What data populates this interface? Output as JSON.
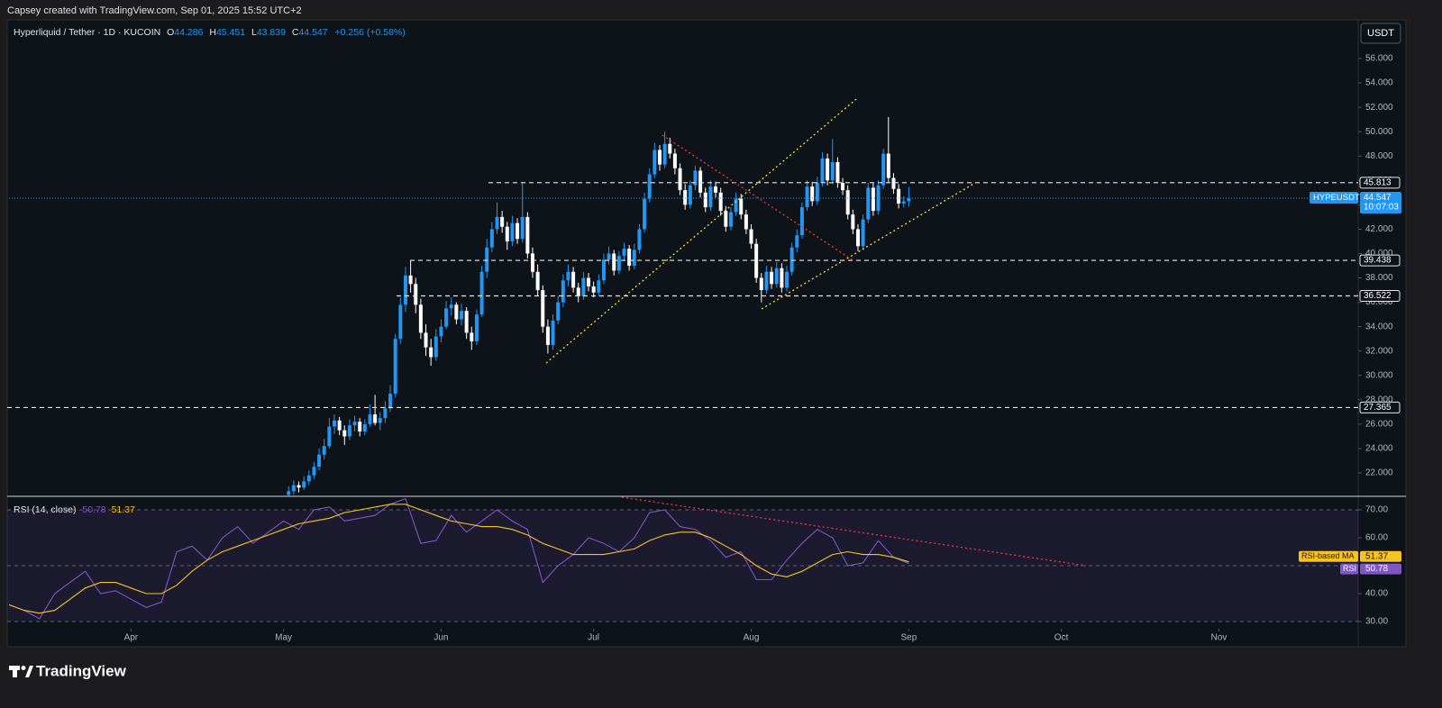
{
  "header": {
    "credit": "Capsey created with TradingView.com, Sep 01, 2025 15:52 UTC+2",
    "currency": "USDT"
  },
  "footer": {
    "logo": "TradingView"
  },
  "chart_data": [
    {
      "type": "candlestick",
      "title": "Hyperliquid / Tether · 1D · KUCOIN",
      "legend": [
        {
          "key": "O",
          "value": "44.286"
        },
        {
          "key": "H",
          "value": "45.451"
        },
        {
          "key": "L",
          "value": "43.839"
        },
        {
          "key": "C",
          "value": "44.547"
        }
      ],
      "change": "+0.256 (+0.58%)",
      "up_color": "#2196f3",
      "down_color": "#ffffff",
      "xlim": [
        0,
        265.4
      ],
      "ylim": [
        20.08,
        59.03
      ],
      "yticks": [
        {
          "value": 22,
          "label": "22.000"
        },
        {
          "value": 24,
          "label": "24.000"
        },
        {
          "value": 26,
          "label": "26.000"
        },
        {
          "value": 28,
          "label": "28.000"
        },
        {
          "value": 30,
          "label": "30.000"
        },
        {
          "value": 32,
          "label": "32.000"
        },
        {
          "value": 34,
          "label": "34.000"
        },
        {
          "value": 36,
          "label": "36.000"
        },
        {
          "value": 38,
          "label": "38.000"
        },
        {
          "value": 40,
          "label": "40.000"
        },
        {
          "value": 42,
          "label": "42.000"
        },
        {
          "value": 44,
          "label": "44.000"
        },
        {
          "value": 46,
          "label": "46.000"
        },
        {
          "value": 48,
          "label": "48.000"
        },
        {
          "value": 50,
          "label": "50.000"
        },
        {
          "value": 52,
          "label": "52.000"
        },
        {
          "value": 54,
          "label": "54.000"
        },
        {
          "value": 56,
          "label": "56.000"
        }
      ],
      "levels": [
        45.813,
        39.438,
        36.522,
        27.365
      ],
      "last_price": 44.547,
      "last_label": "HYPEUSDT",
      "countdown": "10:07:03",
      "x": [
        55,
        56,
        57,
        58,
        59,
        60,
        61,
        62,
        63,
        64,
        65,
        66,
        67,
        68,
        69,
        70,
        71,
        72,
        73,
        74,
        75,
        76,
        77,
        78,
        79,
        80,
        81,
        82,
        83,
        84,
        85,
        86,
        87,
        88,
        89,
        90,
        91,
        92,
        93,
        94,
        95,
        96,
        97,
        98,
        99,
        100,
        101,
        102,
        103,
        104,
        105,
        106,
        107,
        108,
        109,
        110,
        111,
        112,
        113,
        114,
        115,
        116,
        117,
        118,
        119,
        120,
        121,
        122,
        123,
        124,
        125,
        126,
        127,
        128,
        129,
        130,
        131,
        132,
        133,
        134,
        135,
        136,
        137,
        138,
        139,
        140,
        141,
        142,
        143,
        144,
        145,
        146,
        147,
        148,
        149,
        150,
        151,
        152,
        153,
        154,
        155,
        156,
        157,
        158,
        159,
        160,
        161,
        162,
        163,
        164,
        165,
        166,
        167,
        168,
        169,
        170,
        171,
        172,
        173,
        174,
        175,
        176,
        177
      ],
      "ohlc": [
        [
          20.2,
          20.9,
          19.8,
          20.5
        ],
        [
          20.5,
          21.4,
          20.2,
          21.0
        ],
        [
          21.0,
          21.3,
          20.4,
          20.8
        ],
        [
          20.8,
          21.7,
          20.6,
          21.3
        ],
        [
          21.3,
          22.2,
          21.0,
          21.8
        ],
        [
          21.8,
          22.9,
          21.5,
          22.5
        ],
        [
          22.5,
          24.0,
          22.2,
          23.5
        ],
        [
          23.5,
          24.8,
          23.1,
          24.2
        ],
        [
          24.2,
          26.5,
          24.0,
          25.8
        ],
        [
          25.8,
          26.8,
          25.2,
          26.3
        ],
        [
          26.3,
          26.6,
          25.1,
          25.5
        ],
        [
          25.5,
          25.9,
          24.3,
          25.0
        ],
        [
          25.0,
          26.4,
          24.7,
          25.9
        ],
        [
          25.9,
          26.7,
          25.4,
          26.2
        ],
        [
          26.2,
          26.5,
          25.0,
          25.4
        ],
        [
          25.4,
          26.4,
          25.1,
          26.0
        ],
        [
          26.0,
          27.6,
          25.8,
          26.8
        ],
        [
          26.8,
          28.4,
          25.9,
          26.1
        ],
        [
          26.1,
          27.0,
          25.5,
          26.5
        ],
        [
          26.5,
          27.9,
          26.1,
          27.3
        ],
        [
          27.3,
          29.2,
          27.0,
          28.5
        ],
        [
          28.5,
          33.4,
          28.2,
          33.0
        ],
        [
          33.0,
          36.4,
          32.6,
          35.8
        ],
        [
          35.8,
          38.9,
          35.2,
          38.2
        ],
        [
          38.2,
          39.4,
          36.8,
          37.5
        ],
        [
          37.5,
          38.0,
          35.1,
          35.8
        ],
        [
          35.8,
          36.3,
          33.0,
          33.5
        ],
        [
          33.5,
          34.2,
          31.6,
          32.3
        ],
        [
          32.3,
          33.0,
          30.8,
          31.5
        ],
        [
          31.5,
          33.8,
          31.2,
          33.2
        ],
        [
          33.2,
          34.6,
          32.7,
          34.0
        ],
        [
          34.0,
          36.1,
          33.8,
          35.5
        ],
        [
          35.5,
          36.4,
          34.9,
          35.8
        ],
        [
          35.8,
          36.0,
          34.2,
          34.6
        ],
        [
          34.6,
          35.9,
          34.1,
          35.3
        ],
        [
          35.3,
          35.6,
          33.0,
          33.5
        ],
        [
          33.5,
          34.0,
          32.1,
          32.8
        ],
        [
          32.8,
          35.4,
          32.5,
          35.0
        ],
        [
          35.0,
          39.0,
          34.8,
          38.5
        ],
        [
          38.5,
          41.2,
          38.0,
          40.5
        ],
        [
          40.5,
          42.6,
          40.1,
          42.0
        ],
        [
          42.0,
          44.2,
          41.6,
          43.0
        ],
        [
          43.0,
          43.5,
          41.7,
          42.2
        ],
        [
          42.2,
          42.6,
          40.3,
          41.0
        ],
        [
          41.0,
          43.1,
          40.6,
          42.5
        ],
        [
          42.5,
          42.9,
          40.8,
          41.2
        ],
        [
          41.2,
          45.8,
          40.9,
          43.0
        ],
        [
          43.0,
          43.4,
          39.6,
          40.0
        ],
        [
          40.0,
          40.5,
          38.0,
          38.5
        ],
        [
          38.5,
          39.1,
          36.5,
          37.0
        ],
        [
          37.0,
          37.4,
          33.5,
          34.0
        ],
        [
          34.0,
          34.6,
          31.8,
          32.5
        ],
        [
          32.5,
          35.0,
          32.1,
          34.5
        ],
        [
          34.5,
          36.5,
          34.2,
          36.0
        ],
        [
          36.0,
          38.3,
          35.6,
          37.8
        ],
        [
          37.8,
          39.1,
          37.3,
          38.5
        ],
        [
          38.5,
          38.9,
          36.8,
          37.2
        ],
        [
          37.2,
          37.6,
          36.0,
          36.5
        ],
        [
          36.5,
          38.5,
          36.2,
          38.0
        ],
        [
          38.0,
          38.4,
          36.9,
          37.3
        ],
        [
          37.3,
          37.7,
          36.4,
          36.8
        ],
        [
          36.8,
          38.3,
          36.5,
          37.8
        ],
        [
          37.8,
          40.0,
          37.5,
          39.5
        ],
        [
          39.5,
          40.6,
          39.1,
          40.0
        ],
        [
          40.0,
          40.3,
          38.2,
          38.6
        ],
        [
          38.6,
          40.2,
          38.3,
          39.8
        ],
        [
          39.8,
          40.9,
          39.4,
          40.4
        ],
        [
          40.4,
          40.7,
          38.6,
          39.0
        ],
        [
          39.0,
          40.8,
          38.7,
          40.3
        ],
        [
          40.3,
          42.4,
          40.0,
          42.0
        ],
        [
          42.0,
          45.0,
          41.7,
          44.5
        ],
        [
          44.5,
          47.0,
          44.2,
          46.5
        ],
        [
          46.5,
          49.1,
          46.2,
          48.5
        ],
        [
          48.5,
          48.9,
          46.8,
          47.3
        ],
        [
          47.3,
          50.0,
          47.0,
          49.0
        ],
        [
          49.0,
          49.5,
          47.8,
          48.2
        ],
        [
          48.2,
          48.6,
          46.5,
          47.0
        ],
        [
          47.0,
          47.4,
          44.8,
          45.2
        ],
        [
          45.2,
          45.7,
          43.6,
          44.0
        ],
        [
          44.0,
          46.0,
          43.7,
          45.6
        ],
        [
          45.6,
          47.2,
          45.2,
          46.8
        ],
        [
          46.8,
          47.1,
          44.6,
          45.0
        ],
        [
          45.0,
          45.4,
          43.4,
          43.8
        ],
        [
          43.8,
          46.0,
          43.5,
          45.5
        ],
        [
          45.5,
          45.9,
          44.6,
          45.0
        ],
        [
          45.0,
          45.4,
          43.1,
          43.5
        ],
        [
          43.5,
          43.9,
          41.8,
          42.2
        ],
        [
          42.2,
          43.8,
          41.9,
          43.4
        ],
        [
          43.4,
          45.0,
          43.1,
          44.5
        ],
        [
          44.5,
          44.9,
          42.8,
          43.2
        ],
        [
          43.2,
          43.6,
          41.6,
          42.0
        ],
        [
          42.0,
          42.4,
          40.4,
          40.8
        ],
        [
          40.8,
          41.2,
          37.6,
          38.0
        ],
        [
          38.0,
          38.4,
          36.0,
          37.0
        ],
        [
          37.0,
          39.0,
          36.7,
          38.5
        ],
        [
          38.5,
          38.9,
          37.1,
          37.5
        ],
        [
          37.5,
          39.3,
          37.2,
          38.8
        ],
        [
          38.8,
          39.2,
          36.8,
          37.2
        ],
        [
          37.2,
          39.0,
          36.9,
          38.5
        ],
        [
          38.5,
          40.9,
          38.2,
          40.5
        ],
        [
          40.5,
          42.0,
          40.1,
          41.5
        ],
        [
          41.5,
          44.2,
          41.2,
          43.8
        ],
        [
          43.8,
          46.0,
          43.5,
          45.5
        ],
        [
          45.5,
          45.9,
          43.9,
          44.3
        ],
        [
          44.3,
          46.3,
          44.0,
          45.8
        ],
        [
          45.8,
          48.3,
          45.5,
          47.8
        ],
        [
          47.8,
          48.2,
          45.6,
          46.0
        ],
        [
          46.0,
          49.4,
          45.7,
          47.5
        ],
        [
          47.5,
          47.9,
          45.4,
          45.8
        ],
        [
          45.8,
          46.2,
          44.8,
          45.2
        ],
        [
          45.2,
          45.6,
          42.8,
          43.2
        ],
        [
          43.2,
          43.6,
          41.6,
          42.0
        ],
        [
          42.0,
          42.4,
          40.2,
          40.6
        ],
        [
          40.6,
          43.2,
          40.3,
          42.8
        ],
        [
          42.8,
          45.8,
          42.5,
          45.4
        ],
        [
          45.4,
          45.8,
          43.1,
          43.5
        ],
        [
          43.5,
          46.0,
          43.2,
          45.6
        ],
        [
          45.6,
          48.6,
          45.3,
          48.2
        ],
        [
          48.2,
          51.2,
          45.8,
          46.2
        ],
        [
          46.2,
          46.6,
          44.9,
          45.3
        ],
        [
          45.3,
          45.7,
          43.7,
          44.1
        ],
        [
          44.1,
          44.7,
          43.8,
          44.286
        ],
        [
          44.286,
          45.451,
          43.839,
          44.547
        ]
      ]
    },
    {
      "type": "line",
      "title": "RSI (14, close)",
      "xlim": [
        0,
        265.4
      ],
      "ylim": [
        27.42,
        74.84
      ],
      "xticks": [
        {
          "value": 24,
          "label": "Apr"
        },
        {
          "value": 54,
          "label": "May"
        },
        {
          "value": 85,
          "label": "Jun"
        },
        {
          "value": 115,
          "label": "Jul"
        },
        {
          "value": 146,
          "label": "Aug"
        },
        {
          "value": 177,
          "label": "Sep"
        },
        {
          "value": 207,
          "label": "Oct"
        },
        {
          "value": 238,
          "label": "Nov"
        }
      ],
      "yticks": [
        {
          "value": 30,
          "label": "30.00"
        },
        {
          "value": 40,
          "label": "40.00"
        },
        {
          "value": 60,
          "label": "60.00"
        },
        {
          "value": 70,
          "label": "70.00"
        }
      ],
      "bands": [
        30,
        50,
        70
      ],
      "x": [
        0,
        3,
        6,
        9,
        12,
        15,
        18,
        21,
        24,
        27,
        30,
        33,
        36,
        39,
        42,
        45,
        48,
        51,
        54,
        57,
        60,
        63,
        66,
        69,
        72,
        75,
        78,
        81,
        84,
        87,
        90,
        93,
        96,
        99,
        102,
        105,
        108,
        111,
        114,
        117,
        120,
        123,
        126,
        129,
        132,
        135,
        138,
        141,
        144,
        147,
        150,
        153,
        156,
        159,
        162,
        165,
        168,
        171,
        174,
        177
      ],
      "series": [
        {
          "name": "RSI",
          "color": "#7e57c2",
          "values": [
            36,
            34,
            31,
            40,
            44,
            48,
            40,
            41,
            38,
            35,
            37,
            55,
            57,
            52,
            60,
            64,
            58,
            62,
            66,
            63,
            70,
            71,
            66,
            67,
            68,
            72,
            74,
            58,
            59,
            68,
            62,
            66,
            70,
            66,
            63,
            44,
            50,
            54,
            60,
            58,
            55,
            60,
            69,
            70,
            64,
            63,
            59,
            53,
            55,
            45,
            45,
            52,
            58,
            63,
            60,
            50,
            51,
            59,
            53,
            50.78
          ]
        },
        {
          "name": "RSI-based MA",
          "color": "#f7c325",
          "values": [
            36,
            34,
            33,
            34,
            38,
            42,
            44,
            44,
            42,
            40,
            40,
            43,
            48,
            52,
            55,
            57,
            59,
            61,
            63,
            65,
            66,
            67,
            69,
            70,
            71,
            72,
            72,
            70,
            68,
            66,
            65,
            64,
            64,
            63,
            61,
            58,
            56,
            54,
            54,
            54,
            55,
            56,
            59,
            61,
            62,
            62,
            60,
            57,
            54,
            50,
            47,
            46,
            48,
            51,
            54,
            55,
            54,
            54,
            53,
            51.37
          ]
        }
      ]
    }
  ]
}
